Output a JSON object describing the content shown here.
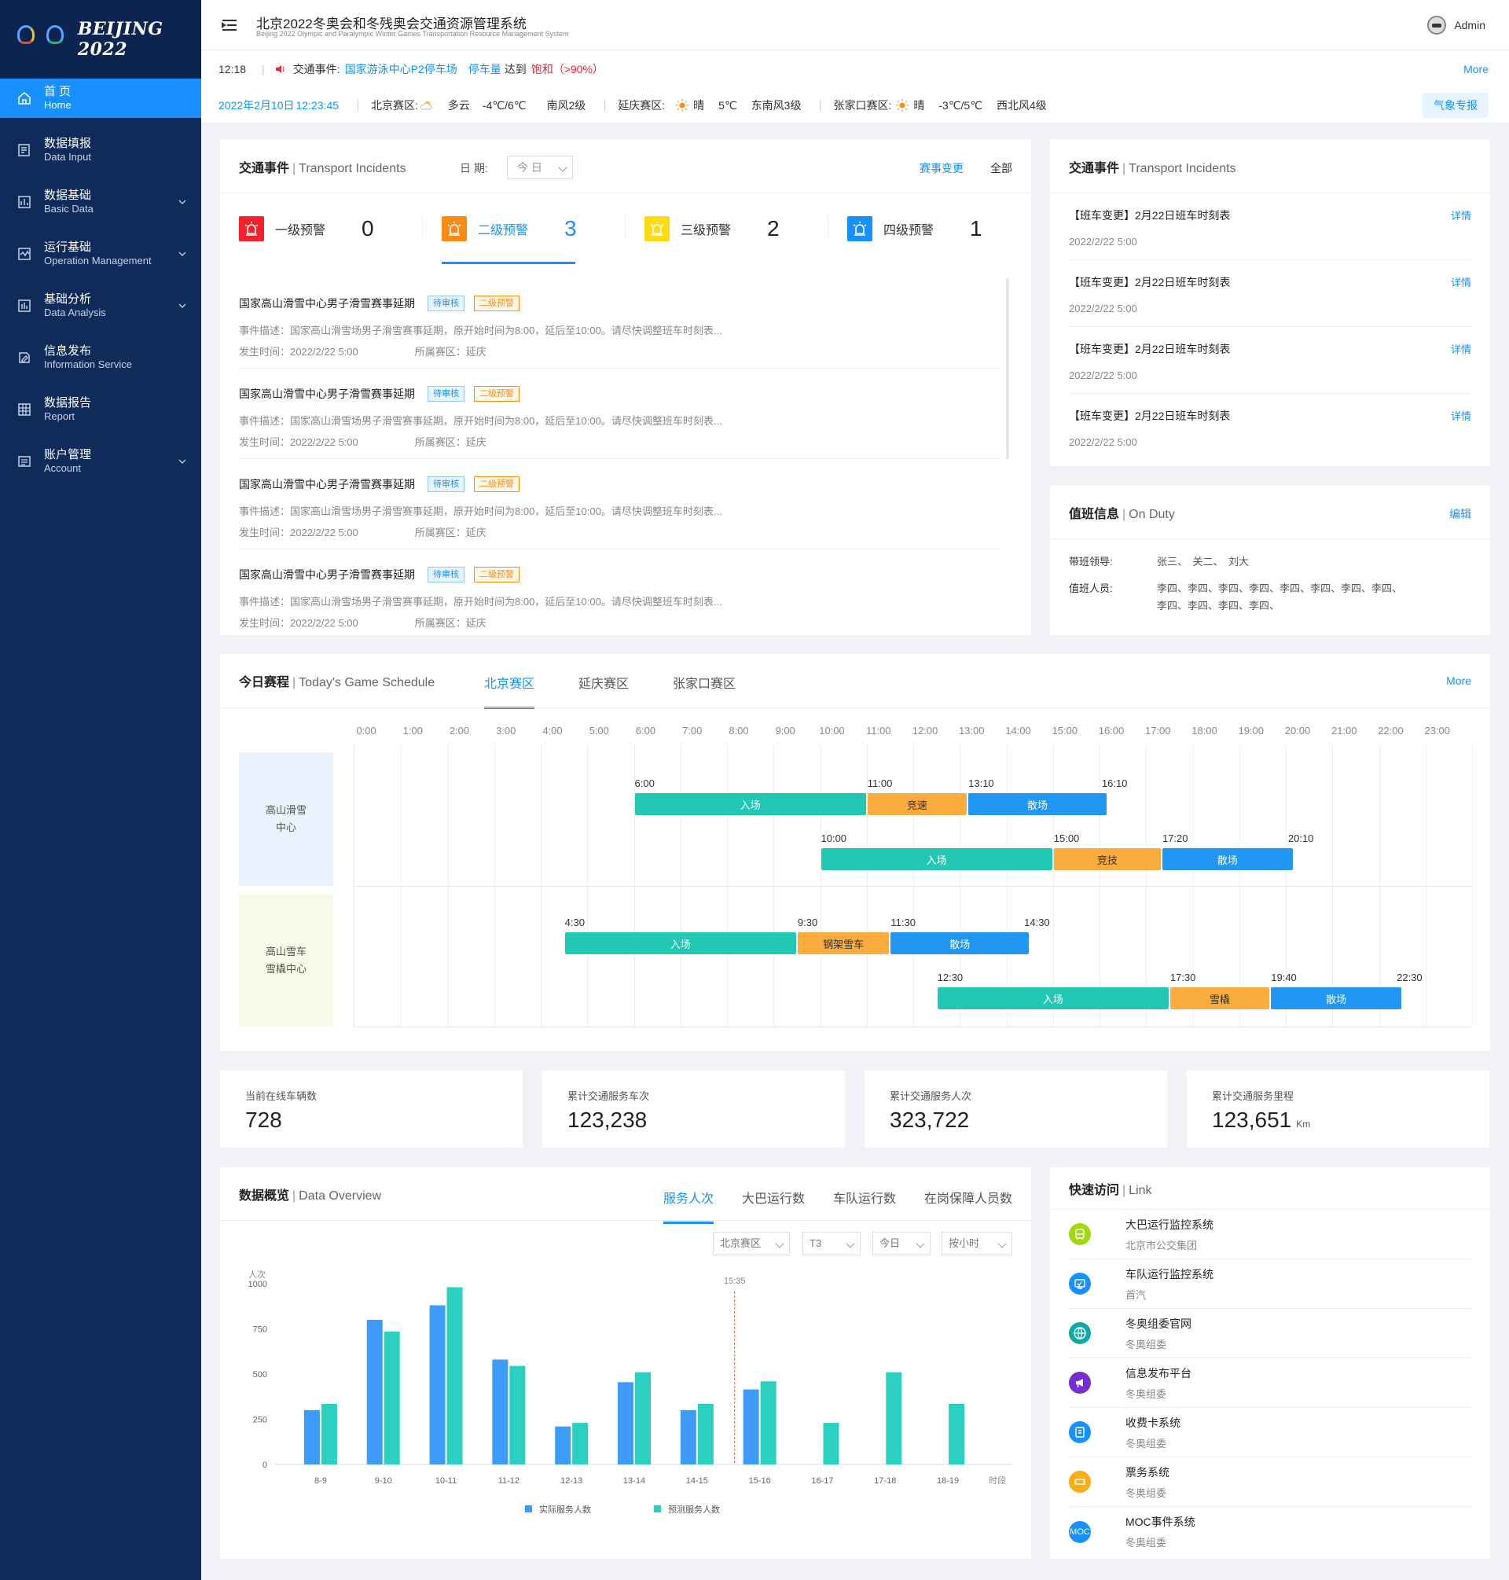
{
  "sidebar": {
    "logo_text": "BEIJING 2022",
    "items": [
      {
        "cn": "首 页",
        "en": "Home",
        "icon": "home-icon",
        "active": true,
        "chevron": false
      },
      {
        "cn": "数据填报",
        "en": "Data Input",
        "icon": "edit-icon",
        "chevron": false
      },
      {
        "cn": "数据基础",
        "en": "Basic Data",
        "icon": "database-icon",
        "chevron": true
      },
      {
        "cn": "运行基础",
        "en": "Operation Management",
        "icon": "monitor-icon",
        "chevron": true
      },
      {
        "cn": "基础分析",
        "en": "Data Analysis",
        "icon": "bar-chart-icon",
        "chevron": true
      },
      {
        "cn": "信息发布",
        "en": "Information Service",
        "icon": "publish-icon",
        "chevron": false
      },
      {
        "cn": "数据报告",
        "en": "Report",
        "icon": "table-icon",
        "chevron": false
      },
      {
        "cn": "账户管理",
        "en": "Account",
        "icon": "account-icon",
        "chevron": true
      }
    ]
  },
  "header": {
    "title": "北京2022冬奥会和冬残奥会交通资源管理系统",
    "subtitle": "Beijing 2022 Olympic and Paralympic Winter Games Transportation Resource Management System",
    "user": "Admin"
  },
  "notice": {
    "time": "12:18",
    "prefix": "交通事件:",
    "location": "国家游泳中心P2停车场",
    "metric": "停车量",
    "reach": "达到",
    "status": "饱和（>90%）",
    "more": "More"
  },
  "weather": {
    "date": "2022年2月10日",
    "time": "12:23:45",
    "zones": [
      {
        "name": "北京赛区:",
        "icon": "partly-cloudy-icon",
        "cond": "多云",
        "temp": "-4℃/6℃",
        "wind": "南风2级"
      },
      {
        "name": "延庆赛区:",
        "icon": "sun-icon",
        "cond": "晴",
        "temp": "5℃",
        "wind": "东南风3级"
      },
      {
        "name": "张家口赛区:",
        "icon": "sun-icon",
        "cond": "晴",
        "temp": "-3℃/5℃",
        "wind": "西北风4级"
      }
    ],
    "button": "气象专报"
  },
  "incidents": {
    "title_cn": "交通事件",
    "title_en": "Transport Incidents",
    "date_label": "日 期:",
    "date_value": "今 日",
    "link_change": "赛事变更",
    "link_all": "全部",
    "levels": [
      {
        "name": "一级预警",
        "count": "0",
        "color": "#f5222d"
      },
      {
        "name": "二级预警",
        "count": "3",
        "color": "#fa8c16",
        "active": true
      },
      {
        "name": "三级预警",
        "count": "2",
        "color": "#fadb14"
      },
      {
        "name": "四级预警",
        "count": "1",
        "color": "#1890ff"
      }
    ],
    "items": [
      {
        "title": "国家高山滑雪中心男子滑雪赛事延期",
        "status": "待审核",
        "level": "二级预警",
        "desc": "事件描述：国家高山滑雪场男子滑雪赛事延期，原开始时间为8:00，延后至10:00。请尽快调整班车时刻表...",
        "time": "发生时间：2022/2/22 5:00",
        "region": "所属赛区：延庆"
      },
      {
        "title": "国家高山滑雪中心男子滑雪赛事延期",
        "status": "待审核",
        "level": "二级预警",
        "desc": "事件描述：国家高山滑雪场男子滑雪赛事延期，原开始时间为8:00，延后至10:00。请尽快调整班车时刻表...",
        "time": "发生时间：2022/2/22 5:00",
        "region": "所属赛区：延庆"
      },
      {
        "title": "国家高山滑雪中心男子滑雪赛事延期",
        "status": "待审核",
        "level": "二级预警",
        "desc": "事件描述：国家高山滑雪场男子滑雪赛事延期，原开始时间为8:00，延后至10:00。请尽快调整班车时刻表...",
        "time": "发生时间：2022/2/22 5:00",
        "region": "所属赛区：延庆"
      },
      {
        "title": "国家高山滑雪中心男子滑雪赛事延期",
        "status": "待审核",
        "level": "二级预警",
        "desc": "事件描述：国家高山滑雪场男子滑雪赛事延期，原开始时间为8:00，延后至10:00。请尽快调整班车时刻表...",
        "time": "发生时间：2022/2/22 5:00",
        "region": "所属赛区：延庆"
      }
    ]
  },
  "right_incidents": {
    "title_cn": "交通事件",
    "title_en": "Transport Incidents",
    "link": "详情",
    "items": [
      {
        "title": "【班车变更】2月22日班车时刻表",
        "time": "2022/2/22 5:00"
      },
      {
        "title": "【班车变更】2月22日班车时刻表",
        "time": "2022/2/22 5:00"
      },
      {
        "title": "【班车变更】2月22日班车时刻表",
        "time": "2022/2/22 5:00"
      },
      {
        "title": "【班车变更】2月22日班车时刻表",
        "time": "2022/2/22 5:00"
      }
    ]
  },
  "duty": {
    "title_cn": "值班信息",
    "title_en": "On Duty",
    "edit": "编辑",
    "leader_label": "带班领导:",
    "leaders": "张三、　关二、　刘大",
    "staff_label": "值班人员:",
    "staff_line1": "李四、李四、李四、李四、李四、李四、李四、李四、",
    "staff_line2": "李四、李四、李四、李四、"
  },
  "schedule": {
    "title_cn": "今日赛程",
    "title_en": "Today's Game Schedule",
    "tabs": [
      "北京赛区",
      "延庆赛区",
      "张家口赛区"
    ],
    "more": "More",
    "hours": [
      "0:00",
      "1:00",
      "2:00",
      "3:00",
      "4:00",
      "5:00",
      "6:00",
      "7:00",
      "8:00",
      "9:00",
      "10:00",
      "11:00",
      "12:00",
      "13:00",
      "14:00",
      "15:00",
      "16:00",
      "17:00",
      "18:00",
      "19:00",
      "20:00",
      "21:00",
      "22:00",
      "23:00"
    ],
    "venues": [
      {
        "name": "高山滑雪\n中心",
        "line1": "高山滑雪",
        "line2": "中心",
        "bg": "#e8f3fe",
        "rows": [
          {
            "times": [
              "6:00",
              "11:00",
              "13:10",
              "16:10"
            ],
            "starts": [
              6,
              11,
              13.1667,
              16.1667
            ],
            "segs": [
              {
                "label": "入场",
                "start": 6,
                "end": 11,
                "kind": "teal"
              },
              {
                "label": "竞速",
                "start": 11,
                "end": 13.1667,
                "kind": "orange"
              },
              {
                "label": "散场",
                "start": 13.1667,
                "end": 16.1667,
                "kind": "blue"
              }
            ]
          },
          {
            "times": [
              "10:00",
              "15:00",
              "17:20",
              "20:10"
            ],
            "starts": [
              10,
              15,
              17.333,
              20.1667
            ],
            "segs": [
              {
                "label": "入场",
                "start": 10,
                "end": 15,
                "kind": "teal"
              },
              {
                "label": "竞技",
                "start": 15,
                "end": 17.333,
                "kind": "orange"
              },
              {
                "label": "散场",
                "start": 17.333,
                "end": 20.1667,
                "kind": "blue"
              }
            ]
          }
        ]
      },
      {
        "name": "高山雪车\n雪橇中心",
        "line1": "高山雪车",
        "line2": "雪橇中心",
        "bg": "#f6fae8",
        "rows": [
          {
            "times": [
              "4:30",
              "9:30",
              "11:30",
              "14:30"
            ],
            "starts": [
              4.5,
              9.5,
              11.5,
              14.5
            ],
            "segs": [
              {
                "label": "入场",
                "start": 4.5,
                "end": 9.5,
                "kind": "teal"
              },
              {
                "label": "钢架雪车",
                "start": 9.5,
                "end": 11.5,
                "kind": "orange"
              },
              {
                "label": "散场",
                "start": 11.5,
                "end": 14.5,
                "kind": "blue"
              }
            ]
          },
          {
            "times": [
              "12:30",
              "17:30",
              "19:40",
              "22:30"
            ],
            "starts": [
              12.5,
              17.5,
              19.6667,
              22.5
            ],
            "segs": [
              {
                "label": "入场",
                "start": 12.5,
                "end": 17.5,
                "kind": "teal"
              },
              {
                "label": "雪橇",
                "start": 17.5,
                "end": 19.6667,
                "kind": "orange"
              },
              {
                "label": "散场",
                "start": 19.6667,
                "end": 22.5,
                "kind": "blue"
              }
            ]
          }
        ]
      }
    ]
  },
  "stats": [
    {
      "label": "当前在线车辆数",
      "value": "728",
      "unit": ""
    },
    {
      "label": "累计交通服务车次",
      "value": "123,238",
      "unit": ""
    },
    {
      "label": "累计交通服务人次",
      "value": "323,722",
      "unit": ""
    },
    {
      "label": "累计交通服务里程",
      "value": "123,651",
      "unit": "Km"
    }
  ],
  "overview": {
    "title_cn": "数据概览",
    "title_en": "Data Overview",
    "tabs": [
      "服务人次",
      "大巴运行数",
      "车队运行数",
      "在岗保障人员数"
    ],
    "filters": [
      "北京赛区",
      "T3",
      "今日",
      "按小时"
    ]
  },
  "chart_data": {
    "type": "bar",
    "ylabel": "人次",
    "xlabel": "时段",
    "ylim": [
      0,
      1000
    ],
    "yticks": [
      0,
      250,
      500,
      750,
      1000
    ],
    "categories": [
      "8-9",
      "9-10",
      "10-11",
      "11-12",
      "12-13",
      "13-14",
      "14-15",
      "15-16",
      "16-17",
      "17-18",
      "18-19"
    ],
    "series": [
      {
        "name": "实际服务人数",
        "color": "#3d9bfa",
        "values": [
          300,
          800,
          880,
          580,
          210,
          455,
          300,
          415,
          null,
          null,
          null
        ]
      },
      {
        "name": "预测服务人数",
        "color": "#2bd0c0",
        "values": [
          335,
          735,
          980,
          545,
          230,
          510,
          335,
          460,
          230,
          510,
          335
        ]
      }
    ],
    "marker": {
      "label": "15:35",
      "position": 7.1
    },
    "legend": "bottom"
  },
  "quick": {
    "title_cn": "快速访问",
    "title_en": "Link",
    "items": [
      {
        "title": "大巴运行监控系统",
        "sub": "北京市公交集团",
        "icon": "bus-icon",
        "color": "#a0d911"
      },
      {
        "title": "车队运行监控系统",
        "sub": "首汽",
        "icon": "monitor-icon",
        "color": "#1890ff"
      },
      {
        "title": "冬奥组委官网",
        "sub": "冬奥组委",
        "icon": "globe-icon",
        "color": "#13a8a8"
      },
      {
        "title": "信息发布平台",
        "sub": "冬奥组委",
        "icon": "megaphone-icon",
        "color": "#722ed1"
      },
      {
        "title": "收费卡系统",
        "sub": "冬奥组委",
        "icon": "card-icon",
        "color": "#1890ff"
      },
      {
        "title": "票务系统",
        "sub": "冬奥组委",
        "icon": "ticket-icon",
        "color": "#faad14"
      },
      {
        "title": "MOC事件系统",
        "sub": "冬奥组委",
        "icon": "moc-icon",
        "color": "#1890ff",
        "icon_text": "MOC"
      }
    ]
  }
}
